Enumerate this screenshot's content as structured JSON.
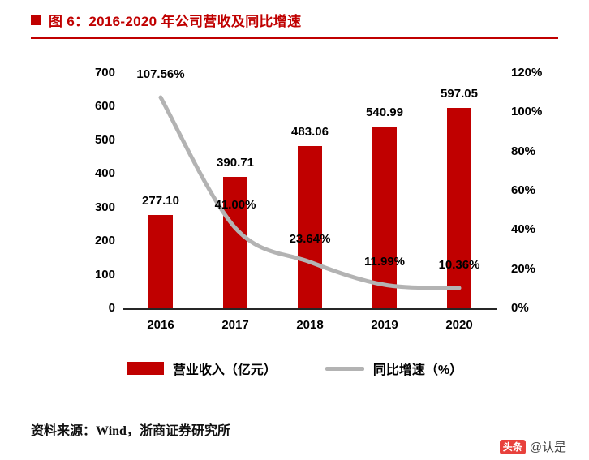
{
  "title": "图 6：2016-2020 年公司营收及同比增速",
  "colors": {
    "accent_red": "#c00000",
    "bar": "#c00000",
    "line": "#b3b3b3",
    "watermark_red": "#e8413c"
  },
  "chart_data": {
    "type": "bar",
    "subtype": "combo-bar-line",
    "categories": [
      "2016",
      "2017",
      "2018",
      "2019",
      "2020"
    ],
    "series": [
      {
        "name": "营业收入（亿元）",
        "type": "bar",
        "axis": "left",
        "color": "#c00000",
        "values": [
          277.1,
          390.71,
          483.06,
          540.99,
          597.05
        ],
        "labels": [
          "277.10",
          "390.71",
          "483.06",
          "540.99",
          "597.05"
        ]
      },
      {
        "name": "同比增速（%）",
        "type": "line",
        "axis": "right",
        "color": "#b3b3b3",
        "values": [
          107.56,
          41.0,
          23.64,
          11.99,
          10.36
        ],
        "labels": [
          "107.56%",
          "41.00%",
          "23.64%",
          "11.99%",
          "10.36%"
        ]
      }
    ],
    "left_axis": {
      "min": 0,
      "max": 700,
      "ticks": [
        "700",
        "600",
        "500",
        "400",
        "300",
        "200",
        "100",
        "0"
      ]
    },
    "right_axis": {
      "min": 0,
      "max": 120,
      "ticks": [
        "120%",
        "100%",
        "80%",
        "60%",
        "40%",
        "20%",
        "0%"
      ]
    },
    "grid": false,
    "legend_position": "bottom",
    "legend": [
      {
        "label": "营业收入（亿元）",
        "swatch": "bar",
        "color": "#c00000"
      },
      {
        "label": "同比增速（%）",
        "swatch": "line",
        "color": "#b3b3b3"
      }
    ]
  },
  "source": "资料来源：Wind，浙商证券研究所",
  "watermark": {
    "logo_text": "头条",
    "handle": "@认是"
  }
}
